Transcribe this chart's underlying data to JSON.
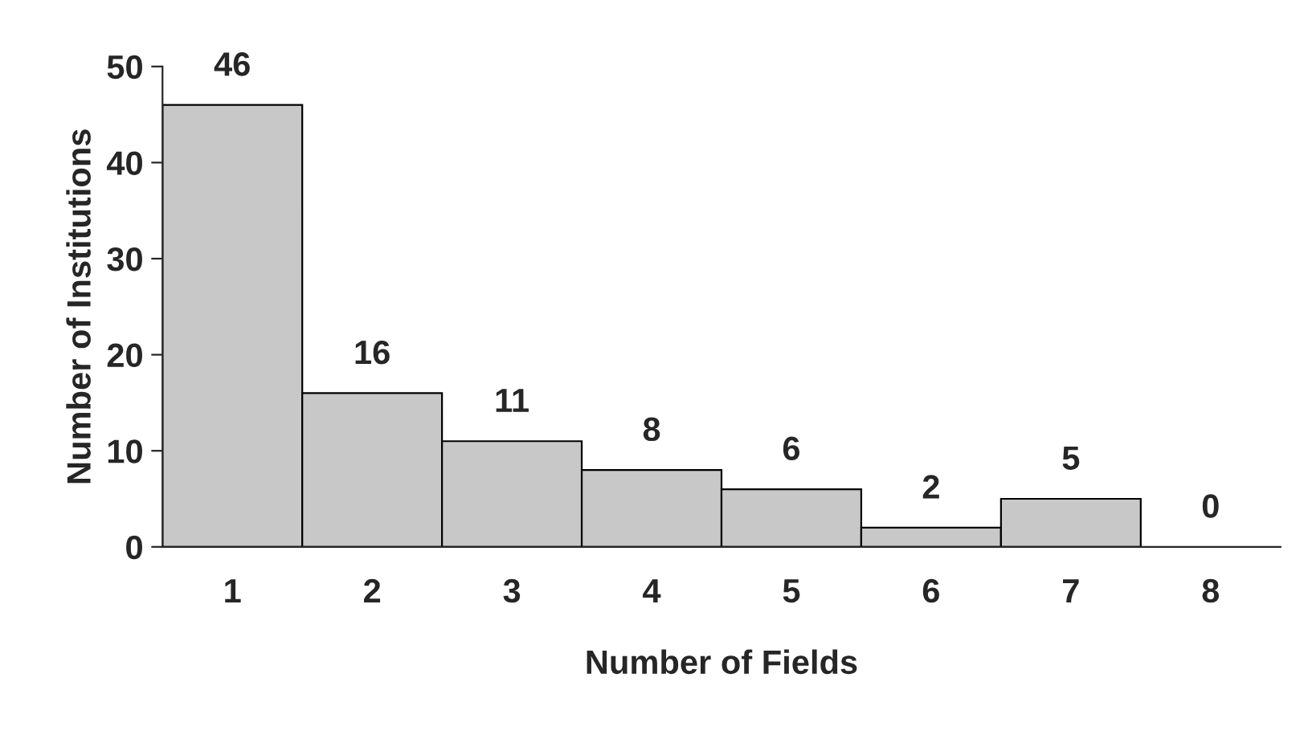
{
  "chart_data": {
    "type": "bar",
    "xlabel": "Number of Fields",
    "ylabel": "Number of Institutions",
    "categories": [
      "1",
      "2",
      "3",
      "4",
      "5",
      "6",
      "7",
      "8"
    ],
    "values": [
      46,
      16,
      11,
      8,
      6,
      2,
      5,
      0
    ],
    "color": "#c8c8c8",
    "ylim": [
      0,
      50
    ],
    "yticks": [
      0,
      10,
      20,
      30,
      40,
      50
    ],
    "grid": false,
    "legend": false,
    "data_labels": true
  }
}
